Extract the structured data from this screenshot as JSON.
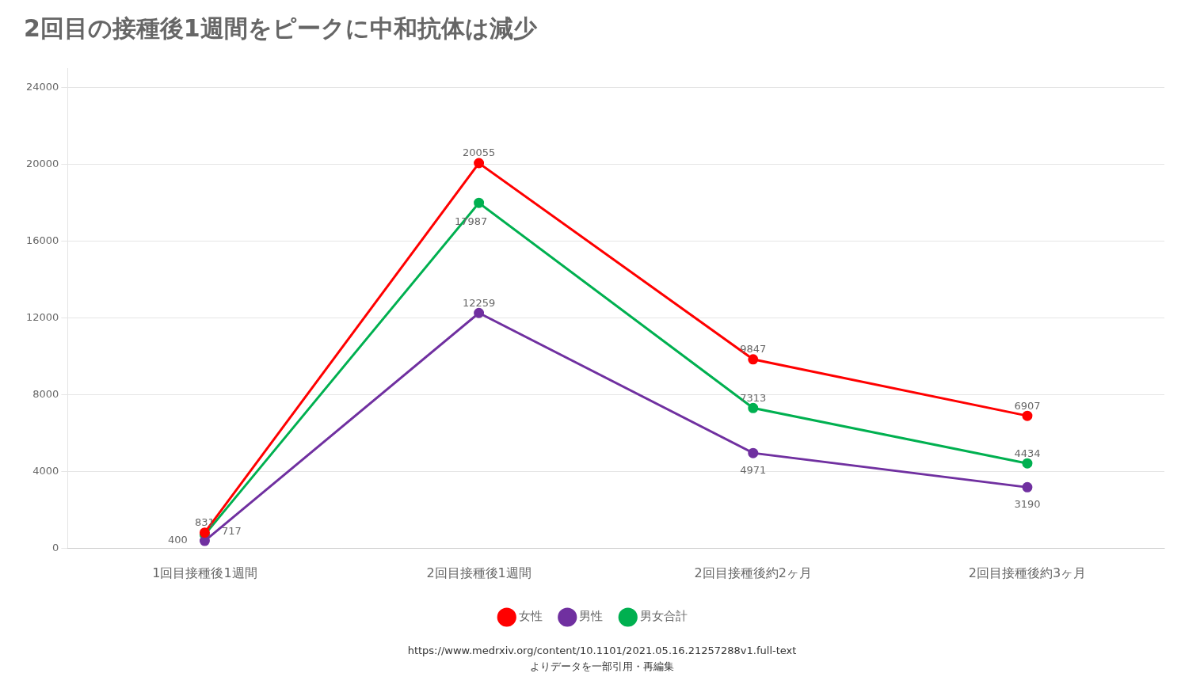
{
  "chart_data": {
    "type": "line",
    "title": "2回目の接種後1週間をピークに中和抗体は減少",
    "categories": [
      "1回目接種後1週間",
      "2回目接種後1週間",
      "2回目接種後約2ヶ月",
      "2回目接種後約3ヶ月"
    ],
    "series": [
      {
        "name": "女性",
        "color": "#FF0000",
        "values": [
          831,
          20055,
          9847,
          6907
        ]
      },
      {
        "name": "男性",
        "color": "#7030A0",
        "values": [
          400,
          12259,
          4971,
          3190
        ]
      },
      {
        "name": "男女合計",
        "color": "#00B050",
        "values": [
          717,
          17987,
          7313,
          4434
        ]
      }
    ],
    "ylim": [
      0,
      25000
    ],
    "yticks": [
      0,
      4000,
      8000,
      12000,
      16000,
      20000,
      24000
    ],
    "grid": true,
    "legend": "bottom",
    "data_labels": true,
    "marker": "circle",
    "annotations": [
      "https://www.medrxiv.org/content/10.1101/2021.05.16.21257288v1.full-text",
      "よりデータを一部引用・再編集"
    ]
  }
}
